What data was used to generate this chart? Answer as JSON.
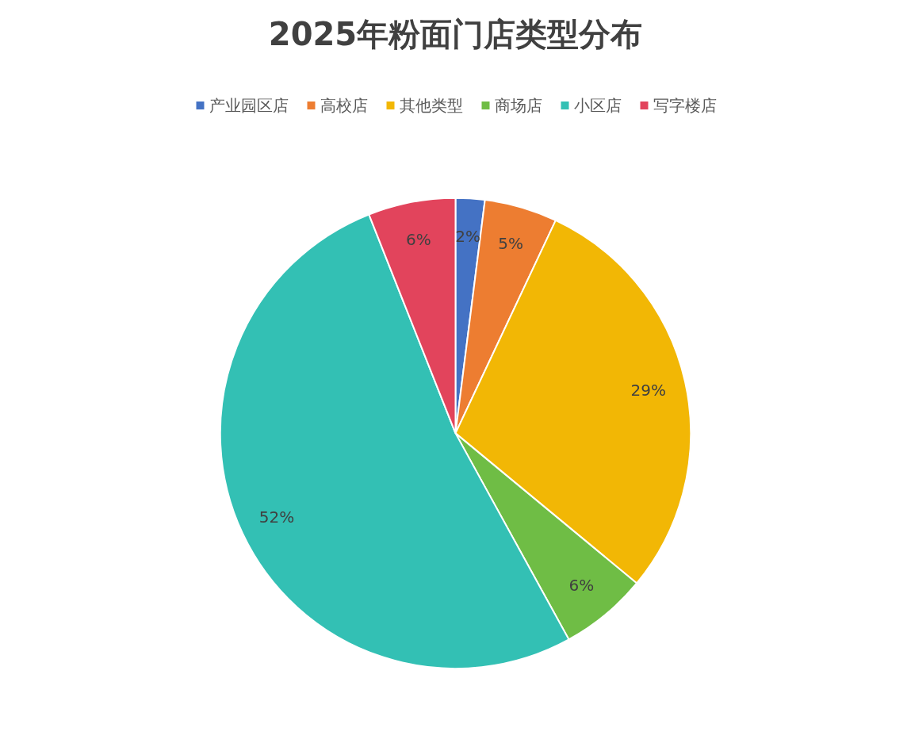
{
  "chart_data": {
    "type": "pie",
    "title": "2025年粉面门店类型分布",
    "categories": [
      "产业园区店",
      "高校店",
      "其他类型",
      "商场店",
      "小区店",
      "写字楼店"
    ],
    "values": [
      2,
      5,
      29,
      6,
      52,
      6
    ],
    "value_labels": [
      "2%",
      "5%",
      "29%",
      "6%",
      "52%",
      "6%"
    ],
    "colors": [
      "#4472c4",
      "#ed7d31",
      "#f2b705",
      "#6fbd45",
      "#33c0b4",
      "#e2445c"
    ],
    "legend": "top"
  }
}
